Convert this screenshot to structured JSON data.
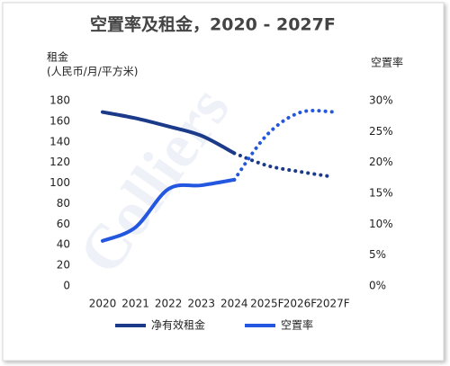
{
  "chart_data": {
    "type": "line",
    "title": "空置率及租金，2020 - 2027F",
    "y_label_lines": [
      "租金",
      "(人民币/月/平方米)"
    ],
    "y2_label": "空置率",
    "watermark": "Colliers",
    "categories": [
      "2020",
      "2021",
      "2022",
      "2023",
      "2024",
      "2025F",
      "2026F",
      "2027F"
    ],
    "series": [
      {
        "name": "净有效租金",
        "color": "#1c3a8a",
        "values": [
          169,
          163,
          155,
          146,
          129,
          117,
          111,
          106
        ]
      },
      {
        "name": "空置率",
        "color": "#2457e0",
        "axis": "y2",
        "values": [
          7.3,
          9.5,
          15.7,
          16.3,
          17.2,
          24.5,
          28.1,
          28.2
        ]
      }
    ],
    "ylim": [
      0,
      180
    ],
    "yticks": [
      0,
      20,
      40,
      60,
      80,
      100,
      120,
      140,
      160,
      180
    ],
    "y2lim": [
      0,
      30
    ],
    "y2ticks": [
      {
        "value": 0,
        "label": "0%"
      },
      {
        "value": 5,
        "label": "5%"
      },
      {
        "value": 10,
        "label": "10%"
      },
      {
        "value": 15,
        "label": "15%"
      },
      {
        "value": 20,
        "label": "20%"
      },
      {
        "value": 25,
        "label": "25%"
      },
      {
        "value": 30,
        "label": "30%"
      }
    ],
    "legend": "bottom"
  }
}
